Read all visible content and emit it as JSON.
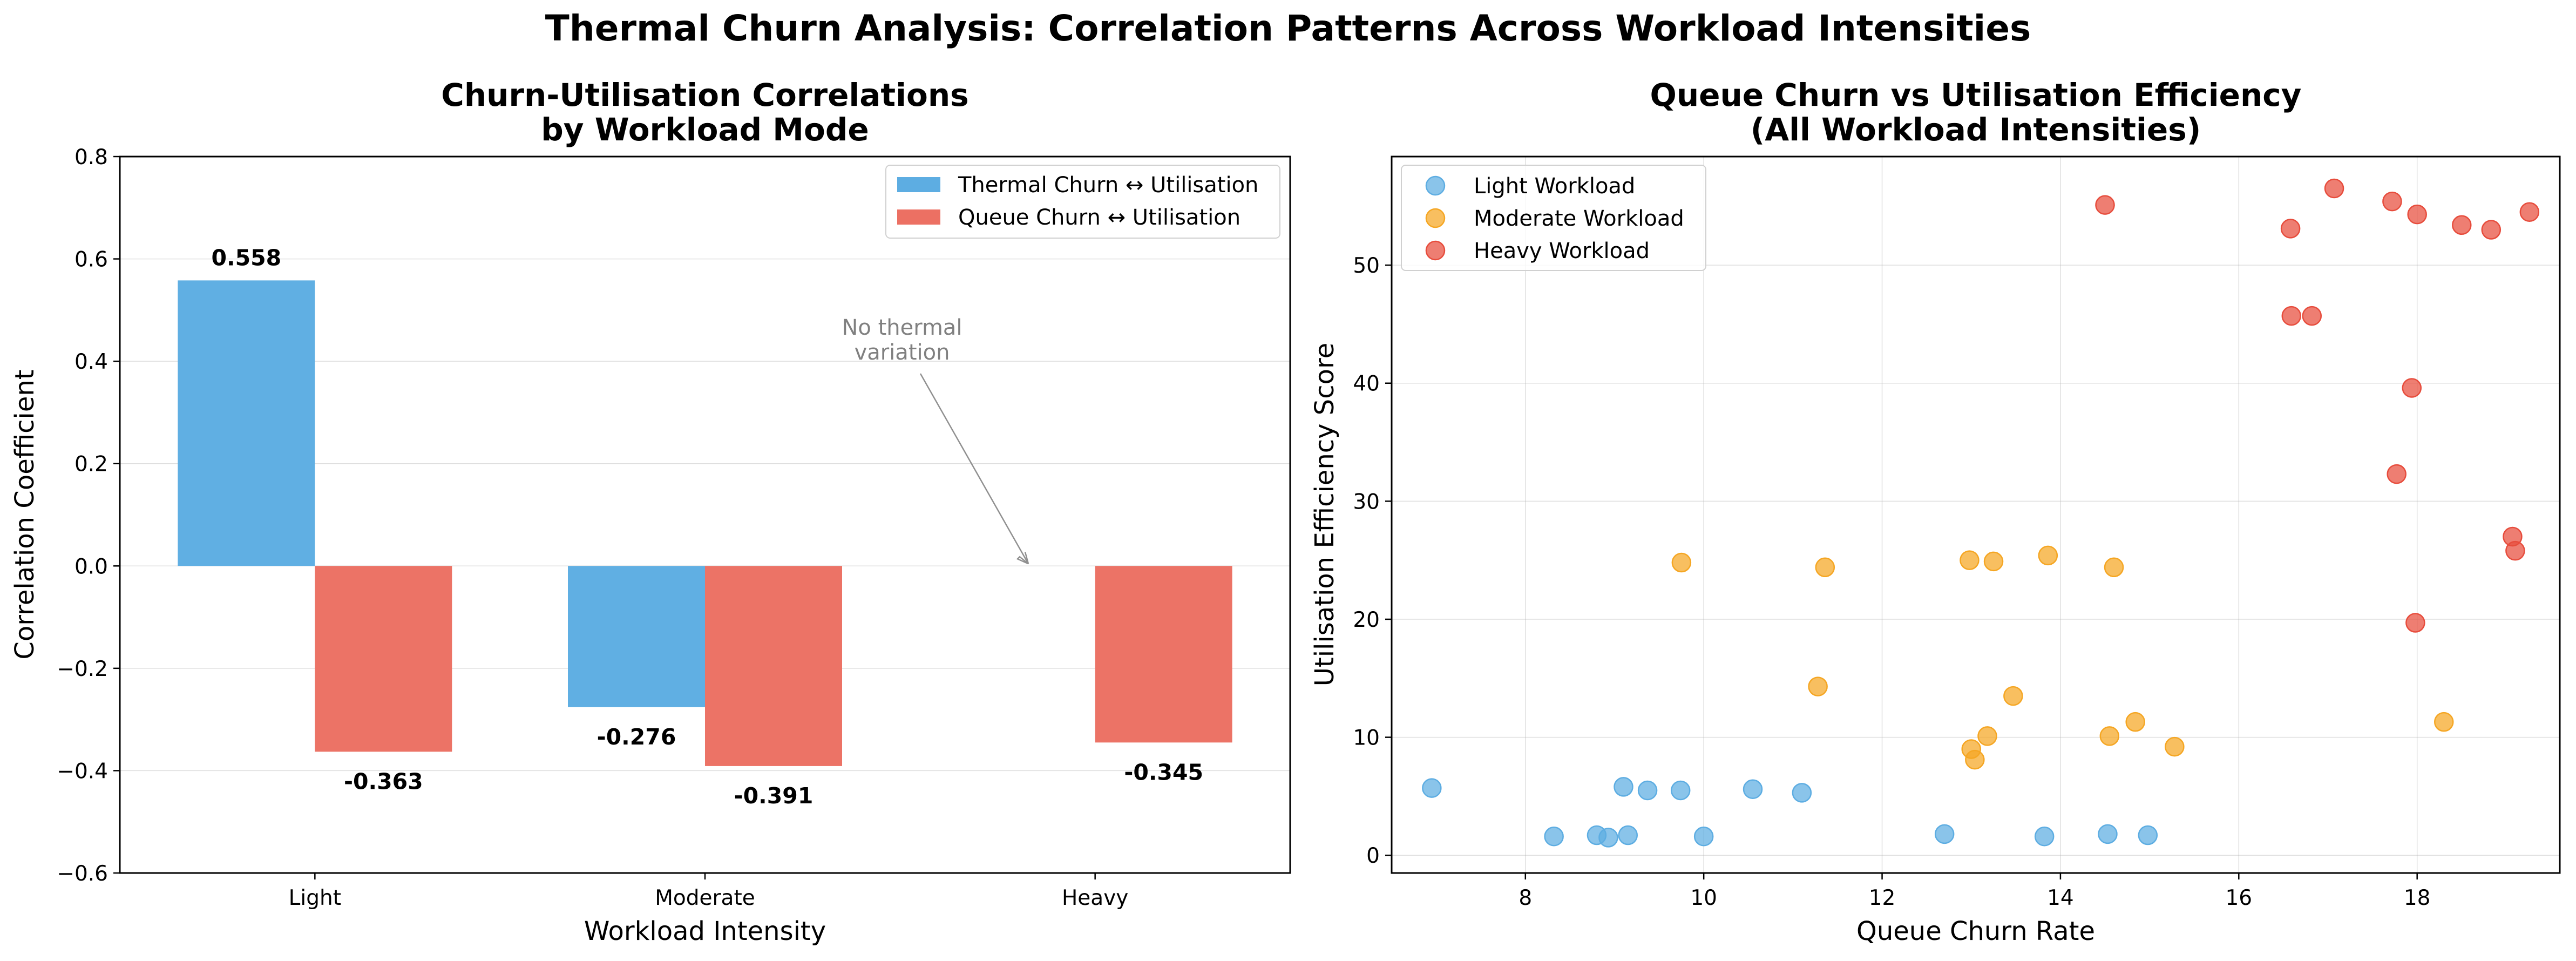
{
  "figure": {
    "title": "Thermal Churn Analysis: Correlation Patterns Across Workload Intensities"
  },
  "chart_data": [
    {
      "type": "bar",
      "title_lines": [
        "Churn-Utilisation Correlations",
        "by Workload Mode"
      ],
      "xlabel": "Workload Intensity",
      "ylabel": "Correlation Coefficient",
      "categories": [
        "Light",
        "Moderate",
        "Heavy"
      ],
      "ylim": [
        -0.6,
        0.8
      ],
      "yticks": [
        -0.6,
        -0.4,
        -0.2,
        0.0,
        0.2,
        0.4,
        0.6,
        0.8
      ],
      "ytick_labels": [
        "−0.6",
        "−0.4",
        "−0.2",
        "0.0",
        "0.2",
        "0.4",
        "0.6",
        "0.8"
      ],
      "grid": "y-only",
      "legend_position": "top-right",
      "series": [
        {
          "name": "Thermal Churn ↔ Utilisation",
          "color": "#5dade2",
          "values": [
            0.558,
            -0.276,
            null
          ],
          "labels": [
            "0.558",
            "-0.276",
            ""
          ]
        },
        {
          "name": "Queue Churn ↔ Utilisation",
          "color": "#ec7063",
          "values": [
            -0.363,
            -0.391,
            -0.345
          ],
          "labels": [
            "-0.363",
            "-0.391",
            "-0.345"
          ]
        }
      ],
      "annotation": {
        "lines": [
          "No thermal",
          "variation"
        ],
        "category": "Heavy",
        "value": 0.0
      }
    },
    {
      "type": "scatter",
      "title_lines": [
        "Queue Churn vs Utilisation Efficiency",
        "(All Workload Intensities)"
      ],
      "xlabel": "Queue Churn Rate",
      "ylabel": "Utilisation Efficiency Score",
      "xlim": [
        6.5,
        19.6
      ],
      "ylim": [
        -1.5,
        59.2
      ],
      "xticks": [
        8,
        10,
        12,
        14,
        16,
        18
      ],
      "xtick_labels": [
        "8",
        "10",
        "12",
        "14",
        "16",
        "18"
      ],
      "yticks": [
        0,
        10,
        20,
        30,
        40,
        50
      ],
      "ytick_labels": [
        "0",
        "10",
        "20",
        "30",
        "40",
        "50"
      ],
      "grid": "both",
      "legend_position": "top-left",
      "series": [
        {
          "name": "Light Workload",
          "color": "#5dade2",
          "points": [
            [
              6.95,
              5.7
            ],
            [
              8.32,
              1.6
            ],
            [
              8.8,
              1.7
            ],
            [
              8.93,
              1.5
            ],
            [
              9.1,
              5.8
            ],
            [
              9.15,
              1.7
            ],
            [
              9.37,
              5.5
            ],
            [
              9.74,
              5.5
            ],
            [
              10.0,
              1.6
            ],
            [
              10.55,
              5.6
            ],
            [
              11.1,
              5.3
            ],
            [
              12.7,
              1.8
            ],
            [
              13.82,
              1.6
            ],
            [
              14.53,
              1.8
            ],
            [
              14.98,
              1.7
            ]
          ]
        },
        {
          "name": "Moderate Workload",
          "color": "#f5a623",
          "points": [
            [
              9.75,
              24.8
            ],
            [
              11.28,
              14.3
            ],
            [
              11.36,
              24.4
            ],
            [
              12.98,
              25.0
            ],
            [
              13.0,
              9.0
            ],
            [
              13.04,
              8.1
            ],
            [
              13.18,
              10.1
            ],
            [
              13.25,
              24.9
            ],
            [
              13.47,
              13.5
            ],
            [
              13.86,
              25.4
            ],
            [
              14.55,
              10.1
            ],
            [
              14.6,
              24.4
            ],
            [
              14.84,
              11.3
            ],
            [
              15.28,
              9.2
            ],
            [
              18.3,
              11.3
            ]
          ]
        },
        {
          "name": "Heavy Workload",
          "color": "#e74c3c",
          "points": [
            [
              14.5,
              55.1
            ],
            [
              16.58,
              53.1
            ],
            [
              16.59,
              45.7
            ],
            [
              16.82,
              45.7
            ],
            [
              17.07,
              56.5
            ],
            [
              17.72,
              55.4
            ],
            [
              17.77,
              32.3
            ],
            [
              17.94,
              39.6
            ],
            [
              17.98,
              19.7
            ],
            [
              18.0,
              54.3
            ],
            [
              18.5,
              53.4
            ],
            [
              18.83,
              53.0
            ],
            [
              19.07,
              27.0
            ],
            [
              19.1,
              25.8
            ],
            [
              19.26,
              54.5
            ]
          ]
        }
      ]
    }
  ]
}
